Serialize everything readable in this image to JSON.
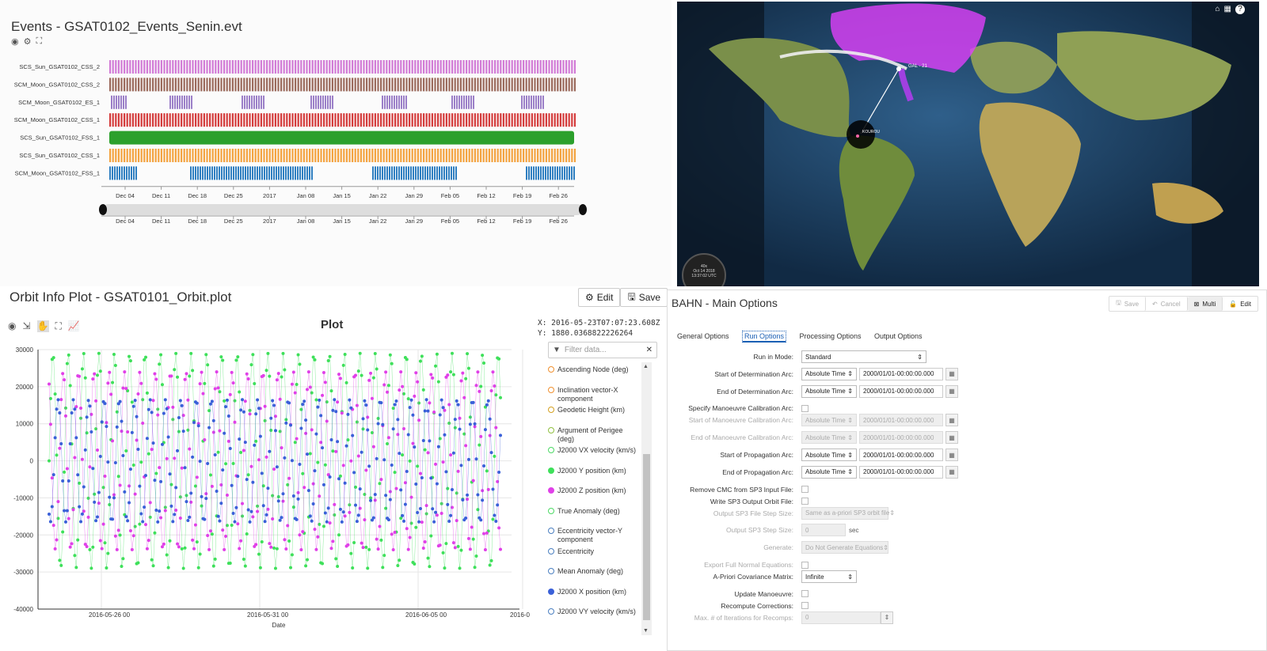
{
  "events": {
    "title": "Events - GSAT0102_Events_Senin.evt",
    "rows": [
      {
        "label": "SCS_Sun_GSAT0102_CSS_2",
        "color": "#d27bd6",
        "fill": "stripes"
      },
      {
        "label": "SCM_Moon_GSAT0102_CSS_2",
        "color": "#9b6a5c",
        "fill": "stripes"
      },
      {
        "label": "SCM_Moon_GSAT0102_ES_1",
        "color": "#9b7fc8",
        "fill": "groups"
      },
      {
        "label": "SCM_Moon_GSAT0102_CSS_1",
        "color": "#d43c3c",
        "fill": "stripes"
      },
      {
        "label": "SCS_Sun_GSAT0102_FSS_1",
        "color": "#2ca02c",
        "fill": "solid"
      },
      {
        "label": "SCS_Sun_GSAT0102_CSS_1",
        "color": "#f3a340",
        "fill": "stripes"
      },
      {
        "label": "SCM_Moon_GSAT0102_FSS_1",
        "color": "#2f7fc1",
        "fill": "groups"
      }
    ],
    "ticks": [
      "Dec 04",
      "Dec 11",
      "Dec 18",
      "Dec 25",
      "2017",
      "Jan 08",
      "Jan 15",
      "Jan 22",
      "Jan 29",
      "Feb 05",
      "Feb 12",
      "Feb 19",
      "Feb 26"
    ]
  },
  "map": {
    "satellite_label": "GAL - 21",
    "station_label": "KOUROU",
    "clock_lines": [
      "40x",
      "Oct 14 2018",
      "13:37:02 UTC"
    ],
    "colors": {
      "coverage": "#e040fb",
      "ocean": "#1b3a5c"
    }
  },
  "orbit": {
    "title": "Orbit Info Plot - GSAT0101_Orbit.plot",
    "edit_label": "Edit",
    "save_label": "Save",
    "plot_title": "Plot",
    "readout_x": "X:  2016-05-23T07:07:23.608Z",
    "readout_y": "Y:  1880.0368822226264",
    "filter_placeholder": "Filter data...",
    "legend": [
      {
        "label": "Ascending Node (deg)",
        "color": "#f0902f",
        "filled": false
      },
      {
        "label": "Inclination vector-X component",
        "color": "#f0902f",
        "filled": false
      },
      {
        "label": "Geodetic Height (km)",
        "color": "#d4a020",
        "filled": false
      },
      {
        "label": "Argument of Perigee (deg)",
        "color": "#8fbf3f",
        "filled": false
      },
      {
        "label": "J2000 VX velocity (km/s)",
        "color": "#4cd964",
        "filled": false
      },
      {
        "label": "J2000 Y position (km)",
        "color": "#3ee05a",
        "filled": true
      },
      {
        "label": "J2000 Z position (km)",
        "color": "#e040e8",
        "filled": true
      },
      {
        "label": "True Anomaly (deg)",
        "color": "#4cd964",
        "filled": false
      },
      {
        "label": "Eccentricity vector-Y component",
        "color": "#4a7fc0",
        "filled": false
      },
      {
        "label": "Eccentricity",
        "color": "#4a7fc0",
        "filled": false
      },
      {
        "label": "Mean Anomaly (deg)",
        "color": "#4a7fc0",
        "filled": false
      },
      {
        "label": "J2000 X position (km)",
        "color": "#3a60d8",
        "filled": true
      },
      {
        "label": "J2000 VY velocity (km/s)",
        "color": "#4a7fc0",
        "filled": false
      }
    ]
  },
  "chart_data": {
    "type": "scatter",
    "title": "Plot",
    "xlabel": "Date",
    "ylabel": "",
    "ylim": [
      -40000,
      30000
    ],
    "x_ticks": [
      "2016-05-26 00",
      "2016-05-31 00",
      "2016-06-05 00",
      "2016-0"
    ],
    "y_ticks": [
      30000,
      20000,
      10000,
      0,
      -10000,
      -20000,
      -30000,
      -40000
    ],
    "series": [
      {
        "name": "J2000 Y position (km)",
        "color": "#3ee05a",
        "amplitude": 29000,
        "cycles": 29.4,
        "phase": 0.0
      },
      {
        "name": "J2000 Z position (km)",
        "color": "#e040e8",
        "amplitude": 24000,
        "cycles": 29.4,
        "phase": 2.1
      },
      {
        "name": "J2000 X position (km)",
        "color": "#3a60d8",
        "amplitude": 16500,
        "cycles": 29.4,
        "phase": 4.2
      }
    ]
  },
  "bahn": {
    "title": "BAHN - Main Options",
    "toolbar": [
      "Save",
      "Cancel",
      "Multi",
      "Edit"
    ],
    "tabs": [
      "General Options",
      "Run Options",
      "Processing Options",
      "Output Options"
    ],
    "active_tab": "Run Options",
    "fields": [
      {
        "label": "Run in Mode:",
        "type": "select",
        "value": "Standard",
        "disabled": false
      },
      {
        "label": "Start of Determination Arc:",
        "type": "time",
        "mode": "Absolute Time",
        "value": "2000/01/01-00:00:00.000",
        "disabled": false
      },
      {
        "label": "End of Determination Arc:",
        "type": "time",
        "mode": "Absolute Time",
        "value": "2000/01/01-00:00:00.000",
        "disabled": false
      },
      {
        "label": "Specify Manoeuvre Calibration Arc:",
        "type": "check",
        "disabled": false
      },
      {
        "label": "Start of Manoeuvre Calibration Arc:",
        "type": "time",
        "mode": "Absolute Time",
        "value": "2000/01/01-00:00:00.000",
        "disabled": true
      },
      {
        "label": "End of Manoeuvre Calibration Arc:",
        "type": "time",
        "mode": "Absolute Time",
        "value": "2000/01/01-00:00:00.000",
        "disabled": true
      },
      {
        "label": "Start of Propagation Arc:",
        "type": "time",
        "mode": "Absolute Time",
        "value": "2000/01/01-00:00:00.000",
        "disabled": false
      },
      {
        "label": "End of Propagation Arc:",
        "type": "time",
        "mode": "Absolute Time",
        "value": "2000/01/01-00:00:00.000",
        "disabled": false
      },
      {
        "label": "Remove CMC from SP3 Input File:",
        "type": "check",
        "disabled": false
      },
      {
        "label": "Write SP3 Output Orbit File:",
        "type": "check",
        "disabled": false
      },
      {
        "label": "Output SP3 File Step Size:",
        "type": "select",
        "value": "Same as a-priori SP3 orbit file",
        "disabled": true
      },
      {
        "label": "Output SP3 Step Size:",
        "type": "number",
        "value": "0",
        "unit": "sec",
        "disabled": true
      },
      {
        "label": "Generate:",
        "type": "select",
        "value": "Do Not Generate Equations",
        "disabled": true
      },
      {
        "label": "Export Full Normal Equations:",
        "type": "check",
        "disabled": true
      },
      {
        "label": "A-Priori Covariance Matrix:",
        "type": "select",
        "value": "Infinite",
        "disabled": false
      },
      {
        "label": "Update Manoeuvre:",
        "type": "check",
        "disabled": false
      },
      {
        "label": "Recompute Corrections:",
        "type": "check",
        "disabled": false
      },
      {
        "label": "Max. # of Iterations for Recomps:",
        "type": "spinner",
        "value": "0",
        "disabled": true
      }
    ]
  }
}
